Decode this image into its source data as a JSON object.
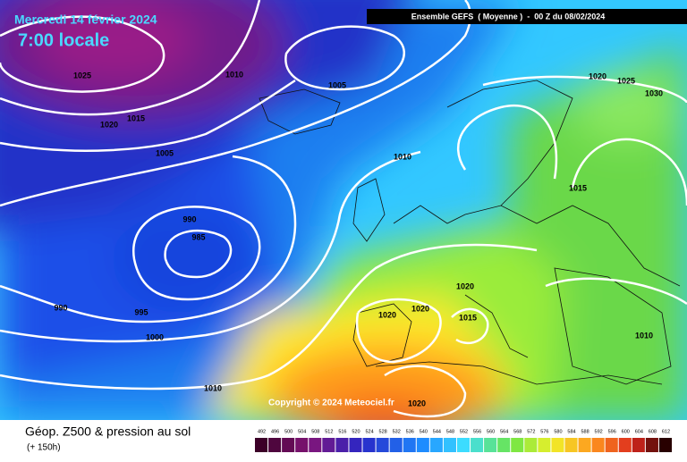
{
  "header": {
    "date": "Mercredi 14 février 2024",
    "time": "7:00 locale",
    "run": "Ensemble GEFS  ( Moyenne )  -  00 Z du 08/02/2024"
  },
  "map": {
    "isobar_labels": [
      "1025",
      "1010",
      "1005",
      "1020",
      "1015",
      "1005",
      "1010",
      "1020",
      "1025",
      "1030",
      "1015",
      "990",
      "985",
      "990",
      "995",
      "1000",
      "1010",
      "1020",
      "1020",
      "1020",
      "1015",
      "1010",
      "1020"
    ],
    "copyright": "Copyright © 2024 Meteociel.fr"
  },
  "footer": {
    "title": "Géop. Z500 & pression au sol",
    "lead": "(+ 150h)",
    "scale": [
      492,
      496,
      500,
      504,
      508,
      512,
      516,
      520,
      524,
      528,
      532,
      536,
      540,
      544,
      548,
      552,
      556,
      560,
      564,
      568,
      572,
      576,
      580,
      584,
      588,
      592,
      596,
      600,
      604,
      608,
      612
    ]
  }
}
